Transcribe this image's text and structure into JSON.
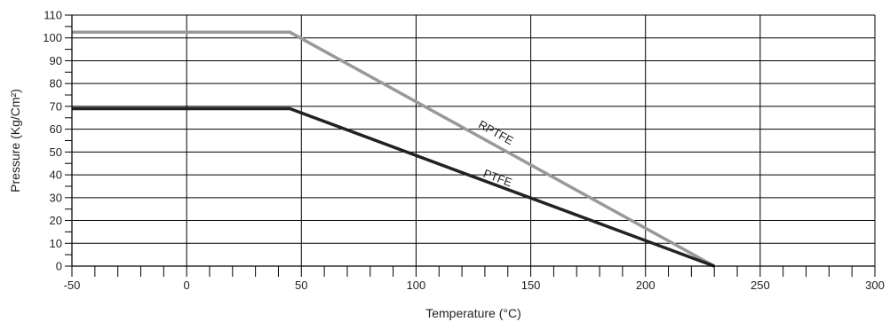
{
  "chart_data": {
    "type": "line",
    "title": "",
    "xlabel": "Temperature (°C)",
    "ylabel": "Pressure (Kg/Cm²)",
    "xlim": [
      -50,
      300
    ],
    "ylim": [
      0,
      110
    ],
    "x_major_ticks": [
      -50,
      0,
      50,
      100,
      150,
      200,
      250,
      300
    ],
    "x_minor_step": 10,
    "y_ticks": [
      0,
      10,
      20,
      30,
      40,
      50,
      60,
      70,
      80,
      90,
      100,
      110
    ],
    "y_tick_labels": [
      "0",
      "10",
      "20",
      "30",
      "40",
      "50",
      "60",
      "70",
      "80",
      "90",
      "100",
      "110"
    ],
    "x_tick_labels": [
      "-50",
      "0",
      "50",
      "100",
      "150",
      "200",
      "250",
      "300"
    ],
    "grid": true,
    "legend": "none",
    "series": [
      {
        "name": "RPTFE",
        "color": "#999999",
        "x": [
          -50,
          45,
          230
        ],
        "y": [
          102.5,
          102.5,
          0
        ]
      },
      {
        "name": "PTFE",
        "color": "#222222",
        "x": [
          -50,
          45,
          230
        ],
        "y": [
          69,
          69,
          0
        ]
      }
    ],
    "annotations": [
      {
        "text": "RPTFE",
        "series": "RPTFE",
        "x": 134,
        "y": 57
      },
      {
        "text": "PTFE",
        "series": "PTFE",
        "x": 135,
        "y": 37
      }
    ]
  }
}
